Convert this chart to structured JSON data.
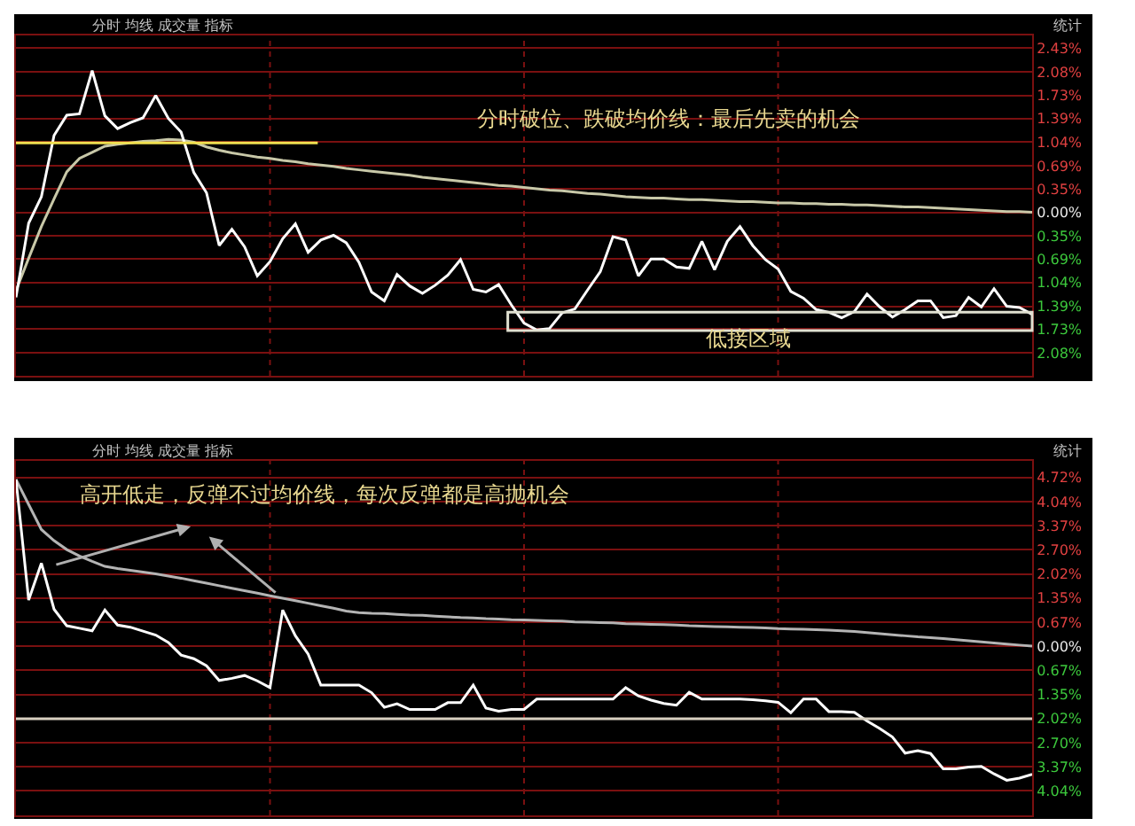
{
  "chart_data": [
    {
      "type": "line",
      "ylim": [
        -2.42,
        2.62
      ],
      "tick_labels": "y",
      "grid": true,
      "categories": [
        null,
        null,
        null,
        null,
        null,
        null,
        null,
        null,
        null,
        null,
        null,
        null,
        null,
        null,
        null,
        null,
        null,
        null,
        null,
        null,
        null,
        null,
        null,
        null,
        null,
        null,
        null,
        null,
        null,
        null,
        null,
        null,
        null,
        null,
        null,
        null,
        null,
        null,
        null,
        null,
        null,
        null,
        null,
        null,
        null,
        null,
        null,
        null,
        null,
        null,
        null,
        null,
        null,
        null,
        null,
        null,
        null,
        null,
        null,
        null,
        null,
        null,
        null,
        null,
        null,
        null,
        null,
        null,
        null,
        null,
        null,
        null,
        null,
        null,
        null,
        null,
        null,
        null,
        null,
        null,
        null
      ],
      "yticks": [
        {
          "value": 2.43,
          "label": "2.43%"
        },
        {
          "value": 2.08,
          "label": "2.08%"
        },
        {
          "value": 1.73,
          "label": "1.73%"
        },
        {
          "value": 1.39,
          "label": "1.39%"
        },
        {
          "value": 1.04,
          "label": "1.04%"
        },
        {
          "value": 0.69,
          "label": "0.69%"
        },
        {
          "value": 0.35,
          "label": "0.35%"
        },
        {
          "value": 0,
          "label": "0.00%"
        },
        {
          "value": -0.35,
          "label": "0.35%"
        },
        {
          "value": -0.69,
          "label": "0.69%"
        },
        {
          "value": -1.04,
          "label": "1.04%"
        },
        {
          "value": -1.39,
          "label": "1.39%"
        },
        {
          "value": -1.73,
          "label": "1.73%"
        },
        {
          "value": -2.08,
          "label": "2.08%"
        }
      ],
      "annotations": [
        "分时破位、跌破均价线：最后先卖的机会",
        "分时 均线 成交量 指标",
        "统计",
        "低接区域"
      ],
      "ref_lines": [
        {
          "axis": "y",
          "value": 1.03,
          "color": "#f0e050"
        }
      ],
      "series": [
        {
          "color": "#c8c8a8",
          "values": [
            -1.16,
            -0.68,
            -0.21,
            0.2,
            0.6,
            0.8,
            0.89,
            0.98,
            1.01,
            1.03,
            1.05,
            1.06,
            1.08,
            1.07,
            1.04,
            0.97,
            0.92,
            0.88,
            0.85,
            0.82,
            0.8,
            0.77,
            0.75,
            0.72,
            0.7,
            0.68,
            0.65,
            0.63,
            0.61,
            0.59,
            0.57,
            0.55,
            0.52,
            0.5,
            0.48,
            0.46,
            0.44,
            0.42,
            0.4,
            0.39,
            0.37,
            0.35,
            0.33,
            0.32,
            0.3,
            0.28,
            0.27,
            0.25,
            0.23,
            0.22,
            0.21,
            0.21,
            0.2,
            0.19,
            0.19,
            0.18,
            0.17,
            0.16,
            0.16,
            0.15,
            0.14,
            0.14,
            0.13,
            0.13,
            0.12,
            0.12,
            0.11,
            0.11,
            0.1,
            0.09,
            0.08,
            0.08,
            0.07,
            0.06,
            0.05,
            0.04,
            0.03,
            0.02,
            0.01,
            0.01,
            0
          ]
        },
        {
          "color": "#ffffff",
          "values": [
            -1.26,
            -0.16,
            0.23,
            1.14,
            1.44,
            1.46,
            2.1,
            1.43,
            1.24,
            1.33,
            1.4,
            1.73,
            1.39,
            1.19,
            0.59,
            0.29,
            -0.49,
            -0.25,
            -0.51,
            -0.94,
            -0.73,
            -0.39,
            -0.17,
            -0.59,
            -0.41,
            -0.34,
            -0.45,
            -0.74,
            -1.18,
            -1.31,
            -0.92,
            -1.09,
            -1.2,
            -1.08,
            -0.93,
            -0.7,
            -1.14,
            -1.18,
            -1.07,
            -1.37,
            -1.64,
            -1.74,
            -1.72,
            -1.49,
            -1.43,
            -1.15,
            -0.88,
            -0.36,
            -0.41,
            -0.94,
            -0.69,
            -0.69,
            -0.81,
            -0.83,
            -0.43,
            -0.85,
            -0.43,
            -0.21,
            -0.49,
            -0.7,
            -0.84,
            -1.17,
            -1.27,
            -1.44,
            -1.48,
            -1.56,
            -1.47,
            -1.21,
            -1.4,
            -1.55,
            -1.44,
            -1.31,
            -1.31,
            -1.56,
            -1.53,
            -1.26,
            -1.4,
            -1.13,
            -1.39,
            -1.41,
            -1.51
          ]
        }
      ]
    },
    {
      "type": "line",
      "ylim": [
        -4.73,
        5.18
      ],
      "tick_labels": "y",
      "grid": true,
      "categories": [
        null,
        null,
        null,
        null,
        null,
        null,
        null,
        null,
        null,
        null,
        null,
        null,
        null,
        null,
        null,
        null,
        null,
        null,
        null,
        null,
        null,
        null,
        null,
        null,
        null,
        null,
        null,
        null,
        null,
        null,
        null,
        null,
        null,
        null,
        null,
        null,
        null,
        null,
        null,
        null,
        null,
        null,
        null,
        null,
        null,
        null,
        null,
        null,
        null,
        null,
        null,
        null,
        null,
        null,
        null,
        null,
        null,
        null,
        null,
        null,
        null,
        null,
        null,
        null,
        null,
        null,
        null,
        null,
        null,
        null,
        null,
        null,
        null,
        null,
        null,
        null,
        null,
        null,
        null,
        null,
        null
      ],
      "yticks": [
        {
          "value": 4.72,
          "label": "4.72%"
        },
        {
          "value": 4.04,
          "label": "4.04%"
        },
        {
          "value": 3.37,
          "label": "3.37%"
        },
        {
          "value": 2.7,
          "label": "2.70%"
        },
        {
          "value": 2.02,
          "label": "2.02%"
        },
        {
          "value": 1.35,
          "label": "1.35%"
        },
        {
          "value": 0.67,
          "label": "0.67%"
        },
        {
          "value": 0,
          "label": "0.00%"
        },
        {
          "value": -0.67,
          "label": "0.67%"
        },
        {
          "value": -1.35,
          "label": "1.35%"
        },
        {
          "value": -2.02,
          "label": "2.02%"
        },
        {
          "value": -2.7,
          "label": "2.70%"
        },
        {
          "value": -3.37,
          "label": "3.37%"
        },
        {
          "value": -4.04,
          "label": "4.04%"
        }
      ],
      "annotations": [
        "高开低走，反弹不过均价线，每次反弹都是高抛机会",
        "分时 均线 成交量 指标",
        "统计"
      ],
      "ref_lines": [
        {
          "axis": "y",
          "value": -2.03,
          "color": "#d8d0c0"
        }
      ],
      "series": [
        {
          "color": "#b4b4b4",
          "values": [
            4.66,
            3.96,
            3.26,
            2.95,
            2.7,
            2.52,
            2.37,
            2.23,
            2.17,
            2.12,
            2.07,
            2.02,
            1.96,
            1.9,
            1.83,
            1.76,
            1.69,
            1.62,
            1.55,
            1.48,
            1.41,
            1.34,
            1.27,
            1.2,
            1.13,
            1.06,
            0.98,
            0.94,
            0.92,
            0.91,
            0.89,
            0.87,
            0.86,
            0.84,
            0.82,
            0.8,
            0.79,
            0.77,
            0.76,
            0.74,
            0.73,
            0.72,
            0.71,
            0.7,
            0.68,
            0.67,
            0.66,
            0.65,
            0.63,
            0.62,
            0.61,
            0.6,
            0.59,
            0.57,
            0.56,
            0.55,
            0.54,
            0.53,
            0.52,
            0.51,
            0.49,
            0.48,
            0.47,
            0.46,
            0.45,
            0.43,
            0.41,
            0.38,
            0.35,
            0.32,
            0.29,
            0.26,
            0.24,
            0.21,
            0.18,
            0.15,
            0.12,
            0.09,
            0.06,
            0.03,
            0
          ]
        },
        {
          "color": "#ffffff",
          "values": [
            4.66,
            1.29,
            2.32,
            1.03,
            0.57,
            0.5,
            0.43,
            1.01,
            0.59,
            0.53,
            0.42,
            0.31,
            0.1,
            -0.25,
            -0.35,
            -0.55,
            -0.96,
            -0.9,
            -0.82,
            -0.97,
            -1.16,
            1.01,
            0.29,
            -0.22,
            -1.09,
            -1.09,
            -1.09,
            -1.09,
            -1.3,
            -1.71,
            -1.61,
            -1.77,
            -1.77,
            -1.77,
            -1.58,
            -1.58,
            -1.09,
            -1.73,
            -1.82,
            -1.77,
            -1.77,
            -1.48,
            -1.48,
            -1.48,
            -1.48,
            -1.48,
            -1.48,
            -1.48,
            -1.16,
            -1.39,
            -1.51,
            -1.6,
            -1.65,
            -1.29,
            -1.48,
            -1.48,
            -1.48,
            -1.48,
            -1.5,
            -1.53,
            -1.57,
            -1.86,
            -1.48,
            -1.48,
            -1.83,
            -1.83,
            -1.85,
            -2.09,
            -2.3,
            -2.54,
            -2.99,
            -2.92,
            -3.0,
            -3.43,
            -3.43,
            -3.38,
            -3.36,
            -3.57,
            -3.75,
            -3.69,
            -3.58
          ]
        }
      ]
    }
  ]
}
